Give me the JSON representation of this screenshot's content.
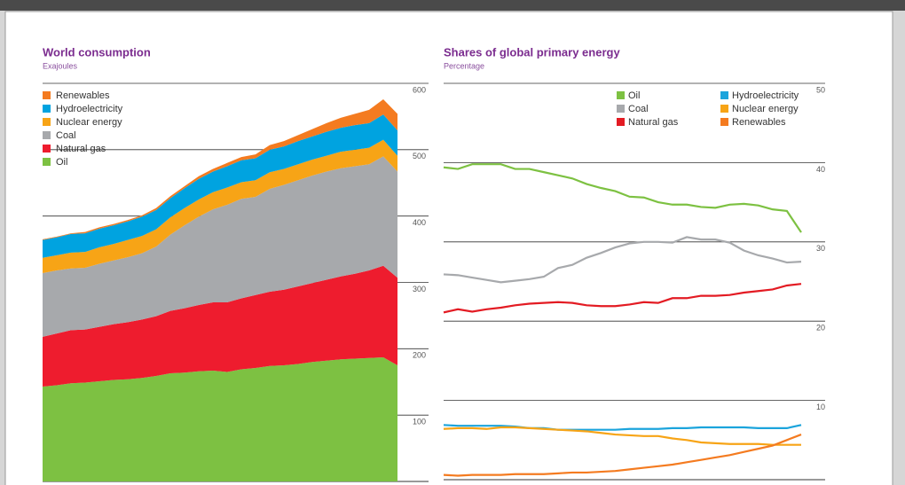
{
  "chart_data": [
    {
      "type": "stacked-area",
      "title": "World consumption",
      "subtitle": "Exajoules",
      "ylim": [
        0,
        600
      ],
      "yticks": [
        100,
        200,
        300,
        400,
        500,
        600
      ],
      "grid": true,
      "legend": "upper left",
      "series": [
        {
          "name": "Oil",
          "color": "#7dc142",
          "values": [
            143,
            145,
            148,
            149,
            151,
            153,
            154,
            156,
            159,
            163,
            164,
            166,
            167,
            165,
            169,
            171,
            174,
            175,
            177,
            180,
            182,
            184,
            185,
            186,
            187,
            175
          ]
        },
        {
          "name": "Natural gas",
          "color": "#ee1c2e",
          "values": [
            75,
            78,
            80,
            80,
            82,
            84,
            86,
            88,
            90,
            94,
            97,
            100,
            103,
            105,
            107,
            110,
            112,
            114,
            117,
            119,
            122,
            125,
            128,
            132,
            138,
            132
          ]
        },
        {
          "name": "Coal",
          "color": "#a7a9ac",
          "values": [
            96,
            95,
            93,
            93,
            95,
            96,
            98,
            100,
            105,
            115,
            125,
            133,
            140,
            147,
            150,
            148,
            155,
            158,
            160,
            162,
            163,
            163,
            162,
            160,
            165,
            160
          ]
        },
        {
          "name": "Nuclear energy",
          "color": "#f7a416",
          "values": [
            23,
            23,
            24,
            24,
            25,
            25,
            26,
            26,
            26,
            26,
            26,
            26,
            26,
            26,
            25,
            25,
            25,
            24,
            24,
            24,
            24,
            25,
            25,
            25,
            25,
            24
          ]
        },
        {
          "name": "Hydroelectricity",
          "color": "#00a3e0",
          "values": [
            27,
            27,
            28,
            28,
            28,
            28,
            28,
            29,
            29,
            29,
            30,
            31,
            31,
            32,
            33,
            33,
            34,
            34,
            35,
            35,
            36,
            36,
            37,
            37,
            38,
            38
          ]
        },
        {
          "name": "Renewables",
          "color": "#f47b20",
          "values": [
            1,
            1,
            1,
            2,
            2,
            2,
            2,
            2,
            3,
            3,
            3,
            4,
            4,
            5,
            5,
            6,
            7,
            8,
            9,
            11,
            13,
            15,
            17,
            20,
            23,
            25
          ]
        }
      ]
    },
    {
      "type": "line",
      "title": "Shares of global primary energy",
      "subtitle": "Percentage",
      "ylim": [
        0,
        50
      ],
      "yticks": [
        10,
        20,
        30,
        40,
        50
      ],
      "grid": true,
      "legend": "upper right",
      "series": [
        {
          "name": "Oil",
          "color": "#7dc142",
          "values": [
            39.4,
            39.2,
            39.8,
            39.8,
            39.8,
            39.2,
            39.2,
            38.8,
            38.4,
            38.0,
            37.3,
            36.8,
            36.4,
            35.7,
            35.6,
            35.0,
            34.7,
            34.7,
            34.4,
            34.3,
            34.7,
            34.8,
            34.6,
            34.1,
            33.9,
            31.2
          ]
        },
        {
          "name": "Coal",
          "color": "#a7a9ac",
          "values": [
            25.9,
            25.8,
            25.5,
            25.2,
            24.9,
            25.1,
            25.3,
            25.6,
            26.7,
            27.1,
            28.0,
            28.6,
            29.3,
            29.8,
            30.0,
            30.0,
            29.9,
            30.6,
            30.3,
            30.3,
            29.9,
            28.9,
            28.3,
            27.9,
            27.4,
            27.5
          ]
        },
        {
          "name": "Natural gas",
          "color": "#e31b23",
          "values": [
            21.1,
            21.5,
            21.2,
            21.5,
            21.7,
            22.0,
            22.2,
            22.3,
            22.4,
            22.3,
            22.0,
            21.9,
            21.9,
            22.1,
            22.4,
            22.3,
            22.9,
            22.9,
            23.2,
            23.2,
            23.3,
            23.6,
            23.8,
            24.0,
            24.5,
            24.7
          ]
        },
        {
          "name": "Hydroelectricity",
          "color": "#1ba4dc",
          "values": [
            6.9,
            6.8,
            6.8,
            6.8,
            6.8,
            6.7,
            6.5,
            6.5,
            6.3,
            6.3,
            6.3,
            6.3,
            6.3,
            6.4,
            6.4,
            6.4,
            6.5,
            6.5,
            6.6,
            6.6,
            6.6,
            6.6,
            6.5,
            6.5,
            6.5,
            6.9
          ]
        },
        {
          "name": "Nuclear energy",
          "color": "#f7a416",
          "values": [
            6.4,
            6.5,
            6.5,
            6.4,
            6.6,
            6.6,
            6.5,
            6.4,
            6.3,
            6.2,
            6.1,
            5.9,
            5.7,
            5.6,
            5.5,
            5.5,
            5.2,
            5.0,
            4.7,
            4.6,
            4.5,
            4.5,
            4.5,
            4.4,
            4.4,
            4.4
          ]
        },
        {
          "name": "Renewables",
          "color": "#f47b20",
          "values": [
            0.6,
            0.5,
            0.6,
            0.6,
            0.6,
            0.7,
            0.7,
            0.7,
            0.8,
            0.9,
            0.9,
            1.0,
            1.1,
            1.3,
            1.5,
            1.7,
            1.9,
            2.2,
            2.5,
            2.8,
            3.1,
            3.5,
            3.9,
            4.3,
            5.0,
            5.7
          ]
        }
      ]
    }
  ]
}
